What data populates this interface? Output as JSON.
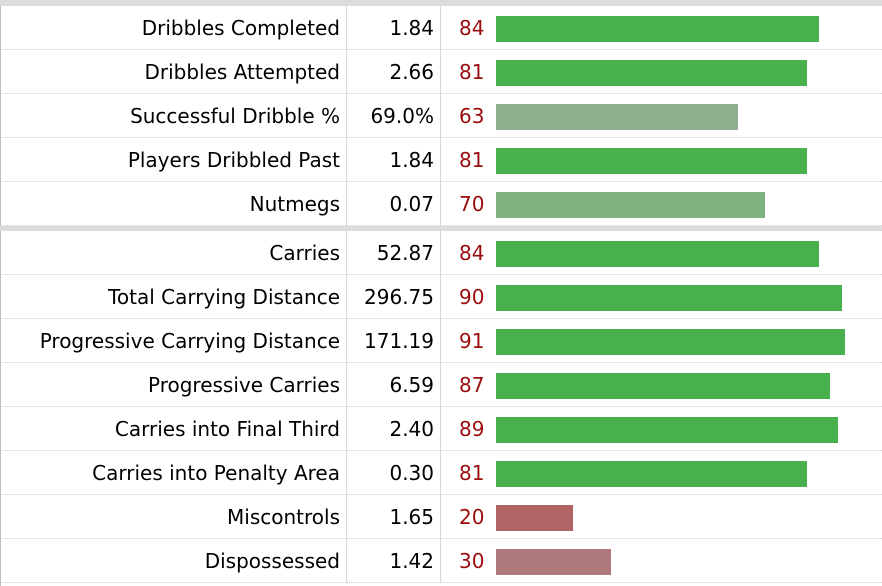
{
  "colors": {
    "strong_green": "#49b04e",
    "mid_green": "#80b27f",
    "pale_green": "#8fb08e",
    "dark_red": "#b06463",
    "pale_red": "#b07a7c",
    "percentile_text": "#9b0d0d"
  },
  "chart_data": {
    "type": "bar",
    "orientation": "horizontal",
    "title": "",
    "xlabel": "",
    "ylabel": "",
    "xlim": [
      0,
      100
    ],
    "groups": [
      {
        "rows": [
          {
            "stat": "Dribbles Completed",
            "value": "1.84",
            "percentile": 84,
            "color": "#49b04e"
          },
          {
            "stat": "Dribbles Attempted",
            "value": "2.66",
            "percentile": 81,
            "color": "#49b04e"
          },
          {
            "stat": "Successful Dribble %",
            "value": "69.0%",
            "percentile": 63,
            "color": "#8fb08e"
          },
          {
            "stat": "Players Dribbled Past",
            "value": "1.84",
            "percentile": 81,
            "color": "#49b04e"
          },
          {
            "stat": "Nutmegs",
            "value": "0.07",
            "percentile": 70,
            "color": "#80b27f"
          }
        ]
      },
      {
        "rows": [
          {
            "stat": "Carries",
            "value": "52.87",
            "percentile": 84,
            "color": "#49b04e"
          },
          {
            "stat": "Total Carrying Distance",
            "value": "296.75",
            "percentile": 90,
            "color": "#49b04e"
          },
          {
            "stat": "Progressive Carrying Distance",
            "value": "171.19",
            "percentile": 91,
            "color": "#49b04e"
          },
          {
            "stat": "Progressive Carries",
            "value": "6.59",
            "percentile": 87,
            "color": "#49b04e"
          },
          {
            "stat": "Carries into Final Third",
            "value": "2.40",
            "percentile": 89,
            "color": "#49b04e"
          },
          {
            "stat": "Carries into Penalty Area",
            "value": "0.30",
            "percentile": 81,
            "color": "#49b04e"
          },
          {
            "stat": "Miscontrols",
            "value": "1.65",
            "percentile": 20,
            "color": "#b06463"
          },
          {
            "stat": "Dispossessed",
            "value": "1.42",
            "percentile": 30,
            "color": "#b07a7c"
          }
        ]
      }
    ]
  }
}
